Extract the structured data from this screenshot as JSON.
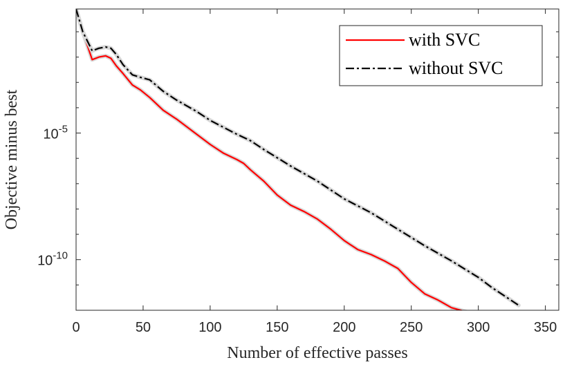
{
  "chart_data": {
    "type": "line",
    "title": "",
    "xlabel": "Number of effective passes",
    "ylabel": "Objective minus best",
    "xlim": [
      0,
      360
    ],
    "ylim_log10": [
      -12,
      -0.1
    ],
    "yscale": "log",
    "x_ticks": [
      0,
      50,
      100,
      150,
      200,
      250,
      300,
      350
    ],
    "y_tick_labels": [
      {
        "exp": -5,
        "base": "10",
        "sup": "-5"
      },
      {
        "exp": -10,
        "base": "10",
        "sup": "-10"
      }
    ],
    "legend_position": "top-right",
    "series": [
      {
        "name": "with SVC",
        "color": "#ff0000",
        "style": "solid",
        "x": [
          0,
          5,
          12,
          17,
          22,
          26,
          30,
          35,
          42,
          48,
          55,
          65,
          75,
          90,
          100,
          110,
          120,
          125,
          130,
          140,
          150,
          160,
          170,
          180,
          190,
          200,
          210,
          220,
          230,
          240,
          250,
          260,
          270,
          280,
          294
        ],
        "log10_y": [
          -0.1,
          -1.0,
          -2.1,
          -2.0,
          -1.95,
          -2.05,
          -2.35,
          -2.65,
          -3.1,
          -3.3,
          -3.6,
          -4.1,
          -4.45,
          -5.05,
          -5.45,
          -5.8,
          -6.05,
          -6.2,
          -6.45,
          -6.9,
          -7.45,
          -7.85,
          -8.1,
          -8.4,
          -8.8,
          -9.25,
          -9.6,
          -9.8,
          -10.05,
          -10.35,
          -10.9,
          -11.35,
          -11.6,
          -11.9,
          -12.1
        ]
      },
      {
        "name": "without SVC",
        "color": "#000000",
        "style": "dashdot",
        "x": [
          0,
          5,
          12,
          17,
          22,
          26,
          30,
          35,
          42,
          48,
          55,
          65,
          75,
          90,
          100,
          120,
          130,
          140,
          160,
          180,
          200,
          220,
          240,
          260,
          280,
          300,
          310,
          320,
          330
        ],
        "log10_y": [
          -0.1,
          -1.0,
          -1.75,
          -1.65,
          -1.6,
          -1.65,
          -1.9,
          -2.3,
          -2.7,
          -2.8,
          -2.9,
          -3.35,
          -3.7,
          -4.15,
          -4.5,
          -5.05,
          -5.3,
          -5.65,
          -6.3,
          -6.9,
          -7.6,
          -8.15,
          -8.8,
          -9.45,
          -10.05,
          -10.7,
          -11.1,
          -11.45,
          -11.8
        ]
      }
    ]
  }
}
